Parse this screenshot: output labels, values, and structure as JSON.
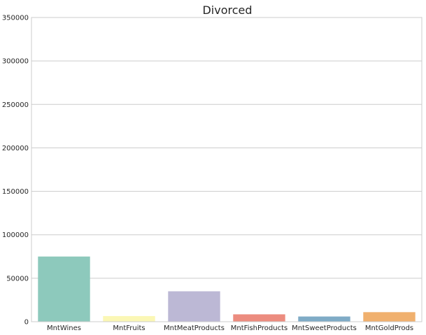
{
  "chart_data": {
    "type": "bar",
    "title": "Divorced",
    "xlabel": "",
    "ylabel": "",
    "categories": [
      "MntWines",
      "MntFruits",
      "MntMeatProducts",
      "MntFishProducts",
      "MntSweetProducts",
      "MntGoldProds"
    ],
    "values": [
      75000,
      6500,
      35000,
      8500,
      6000,
      11000
    ],
    "colors": [
      "#8dc9bc",
      "#fbf7b5",
      "#bcb8d5",
      "#ec8c7f",
      "#7fabc6",
      "#f0b06e"
    ],
    "ylim": [
      0,
      350000
    ],
    "yticks": [
      0,
      50000,
      100000,
      150000,
      200000,
      250000,
      300000,
      350000
    ],
    "grid": "y",
    "style": {
      "gridline_color": "#cccccc",
      "axis_color": "#cccccc",
      "text_color": "#262626"
    }
  }
}
